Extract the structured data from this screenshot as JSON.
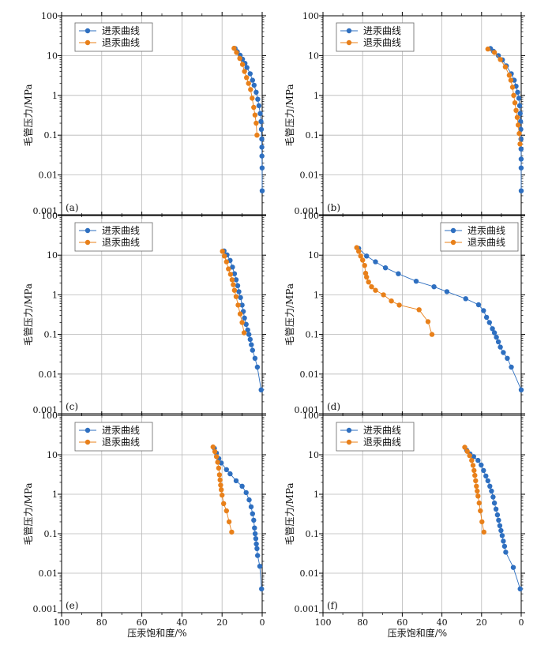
{
  "colors": {
    "intrusion": "#2e6fc0",
    "withdrawal": "#e8801a",
    "grid": "#b8b8b8",
    "axis": "#000000"
  },
  "chart_data": [
    {
      "type": "scatter",
      "panel_label": "(a)",
      "xlim": [
        100,
        0
      ],
      "ylim": [
        0.001,
        100
      ],
      "yscale": "log",
      "ylabel": "毛管压力/MPa",
      "xlabel": "",
      "x_tick_labels": [],
      "y_tick_labels": [
        "100",
        "10",
        "1",
        "0.1",
        "0.01",
        "0.001"
      ],
      "grid": true,
      "legend_placement": "top-left",
      "series": [
        {
          "name": "进汞曲线",
          "points": [
            [
              13.5,
              15.1
            ],
            [
              12.4,
              12.5
            ],
            [
              11.0,
              10.2
            ],
            [
              9.8,
              8.1
            ],
            [
              8.6,
              6.4
            ],
            [
              7.6,
              5.0
            ],
            [
              6.0,
              3.5
            ],
            [
              4.8,
              2.4
            ],
            [
              4.0,
              1.8
            ],
            [
              3.0,
              1.2
            ],
            [
              2.2,
              0.8
            ],
            [
              1.6,
              0.55
            ],
            [
              1.0,
              0.35
            ],
            [
              0.6,
              0.22
            ],
            [
              0.4,
              0.14
            ],
            [
              0.2,
              0.08
            ],
            [
              0.15,
              0.05
            ],
            [
              0.1,
              0.03
            ],
            [
              0.05,
              0.015
            ],
            [
              0.0,
              0.004
            ]
          ]
        },
        {
          "name": "退汞曲线",
          "points": [
            [
              14.0,
              15.3
            ],
            [
              12.8,
              12.0
            ],
            [
              11.2,
              8.5
            ],
            [
              9.8,
              6.0
            ],
            [
              8.8,
              4.0
            ],
            [
              7.8,
              2.8
            ],
            [
              6.8,
              2.0
            ],
            [
              5.8,
              1.4
            ],
            [
              5.0,
              0.85
            ],
            [
              4.2,
              0.5
            ],
            [
              3.6,
              0.32
            ],
            [
              3.0,
              0.2
            ],
            [
              2.6,
              0.1
            ]
          ]
        }
      ]
    },
    {
      "type": "scatter",
      "panel_label": "(b)",
      "xlim": [
        100,
        0
      ],
      "ylim": [
        0.001,
        100
      ],
      "yscale": "log",
      "ylabel": "毛管压力/MPa",
      "xlabel": "",
      "x_tick_labels": [],
      "y_tick_labels": [
        "100",
        "10",
        "1",
        "0.1",
        "0.01",
        "0.001"
      ],
      "grid": true,
      "legend_placement": "top-left",
      "series": [
        {
          "name": "进汞曲线",
          "points": [
            [
              15.5,
              15.0
            ],
            [
              14.0,
              12.8
            ],
            [
              11.5,
              10.0
            ],
            [
              9.5,
              7.8
            ],
            [
              7.5,
              5.5
            ],
            [
              5.0,
              3.5
            ],
            [
              3.5,
              2.4
            ],
            [
              2.6,
              1.7
            ],
            [
              1.8,
              1.2
            ],
            [
              1.2,
              0.85
            ],
            [
              0.8,
              0.55
            ],
            [
              0.5,
              0.35
            ],
            [
              0.3,
              0.22
            ],
            [
              0.2,
              0.14
            ],
            [
              0.12,
              0.08
            ],
            [
              0.08,
              0.045
            ],
            [
              0.05,
              0.025
            ],
            [
              0.03,
              0.015
            ],
            [
              0.0,
              0.004
            ]
          ]
        },
        {
          "name": "退汞曲线",
          "points": [
            [
              16.8,
              14.6
            ],
            [
              13.5,
              12.0
            ],
            [
              10.5,
              8.0
            ],
            [
              8.0,
              5.2
            ],
            [
              6.0,
              3.2
            ],
            [
              5.2,
              2.4
            ],
            [
              4.4,
              1.6
            ],
            [
              3.8,
              1.0
            ],
            [
              3.2,
              0.65
            ],
            [
              2.6,
              0.42
            ],
            [
              2.0,
              0.28
            ],
            [
              1.5,
              0.18
            ],
            [
              1.0,
              0.11
            ],
            [
              0.6,
              0.06
            ]
          ]
        }
      ]
    },
    {
      "type": "scatter",
      "panel_label": "(c)",
      "xlim": [
        100,
        0
      ],
      "ylim": [
        0.001,
        100
      ],
      "yscale": "log",
      "ylabel": "毛管压力/MPa",
      "xlabel": "",
      "x_tick_labels": [],
      "y_tick_labels": [
        "100",
        "10",
        "1",
        "0.1",
        "0.01",
        "0.001"
      ],
      "grid": true,
      "legend_placement": "top-left",
      "series": [
        {
          "name": "进汞曲线",
          "points": [
            [
              19.0,
              12.8
            ],
            [
              17.5,
              10.2
            ],
            [
              16.0,
              7.4
            ],
            [
              14.8,
              5.0
            ],
            [
              13.8,
              3.4
            ],
            [
              13.0,
              2.4
            ],
            [
              12.2,
              1.7
            ],
            [
              11.6,
              1.2
            ],
            [
              10.8,
              0.85
            ],
            [
              10.0,
              0.55
            ],
            [
              9.4,
              0.38
            ],
            [
              8.8,
              0.26
            ],
            [
              8.0,
              0.18
            ],
            [
              7.2,
              0.13
            ],
            [
              6.6,
              0.1
            ],
            [
              6.0,
              0.075
            ],
            [
              5.4,
              0.055
            ],
            [
              4.8,
              0.04
            ],
            [
              3.6,
              0.025
            ],
            [
              2.4,
              0.015
            ],
            [
              0.5,
              0.004
            ]
          ]
        },
        {
          "name": "退汞曲线",
          "points": [
            [
              19.8,
              12.5
            ],
            [
              18.8,
              9.5
            ],
            [
              17.8,
              6.8
            ],
            [
              16.8,
              4.5
            ],
            [
              15.8,
              3.3
            ],
            [
              15.0,
              2.4
            ],
            [
              14.4,
              1.8
            ],
            [
              13.8,
              1.3
            ],
            [
              13.0,
              0.9
            ],
            [
              12.0,
              0.55
            ],
            [
              11.0,
              0.33
            ],
            [
              10.0,
              0.2
            ],
            [
              9.0,
              0.11
            ]
          ]
        }
      ]
    },
    {
      "type": "scatter",
      "panel_label": "(d)",
      "xlim": [
        100,
        0
      ],
      "ylim": [
        0.001,
        100
      ],
      "yscale": "log",
      "ylabel": "毛管压力/MPa",
      "xlabel": "",
      "x_tick_labels": [],
      "y_tick_labels": [
        "100",
        "10",
        "1",
        "0.1",
        "0.01",
        "0.001"
      ],
      "grid": true,
      "legend_placement": "top-right",
      "series": [
        {
          "name": "进汞曲线",
          "points": [
            [
              82.0,
              14.8
            ],
            [
              78.0,
              9.5
            ],
            [
              73.5,
              6.8
            ],
            [
              68.5,
              4.8
            ],
            [
              62.0,
              3.4
            ],
            [
              53.0,
              2.2
            ],
            [
              44.0,
              1.6
            ],
            [
              37.5,
              1.2
            ],
            [
              28.0,
              0.8
            ],
            [
              21.5,
              0.56
            ],
            [
              19.0,
              0.4
            ],
            [
              17.5,
              0.27
            ],
            [
              16.0,
              0.2
            ],
            [
              14.5,
              0.14
            ],
            [
              13.5,
              0.11
            ],
            [
              12.5,
              0.085
            ],
            [
              11.5,
              0.065
            ],
            [
              10.5,
              0.048
            ],
            [
              9.0,
              0.035
            ],
            [
              7.0,
              0.025
            ],
            [
              5.0,
              0.015
            ],
            [
              0.0,
              0.004
            ]
          ]
        },
        {
          "name": "退汞曲线",
          "points": [
            [
              83.0,
              15.5
            ],
            [
              82.0,
              12.5
            ],
            [
              81.0,
              9.5
            ],
            [
              80.0,
              7.5
            ],
            [
              79.0,
              5.5
            ],
            [
              78.5,
              3.5
            ],
            [
              78.0,
              2.8
            ],
            [
              77.0,
              2.1
            ],
            [
              75.5,
              1.6
            ],
            [
              73.5,
              1.3
            ],
            [
              69.5,
              1.0
            ],
            [
              65.5,
              0.7
            ],
            [
              61.5,
              0.55
            ],
            [
              51.5,
              0.42
            ],
            [
              47.0,
              0.21
            ],
            [
              45.0,
              0.1
            ]
          ]
        }
      ]
    },
    {
      "type": "scatter",
      "panel_label": "(e)",
      "xlim": [
        100,
        0
      ],
      "ylim": [
        0.001,
        100
      ],
      "yscale": "log",
      "ylabel": "毛管压力/MPa",
      "xlabel": "压汞饱和度/%",
      "x_tick_labels": [
        "100",
        "80",
        "60",
        "40",
        "20",
        "0"
      ],
      "y_tick_labels": [
        "100",
        "10",
        "1",
        "0.1",
        "0.01",
        "0.001"
      ],
      "grid": true,
      "legend_placement": "top-left",
      "series": [
        {
          "name": "进汞曲线",
          "points": [
            [
              23.8,
              14.5
            ],
            [
              22.8,
              11.0
            ],
            [
              21.6,
              8.0
            ],
            [
              20.4,
              6.2
            ],
            [
              17.8,
              4.2
            ],
            [
              16.0,
              3.3
            ],
            [
              13.0,
              2.2
            ],
            [
              10.0,
              1.6
            ],
            [
              8.0,
              1.1
            ],
            [
              6.5,
              0.72
            ],
            [
              5.5,
              0.48
            ],
            [
              4.8,
              0.32
            ],
            [
              4.2,
              0.22
            ],
            [
              3.8,
              0.14
            ],
            [
              3.5,
              0.1
            ],
            [
              3.2,
              0.075
            ],
            [
              2.9,
              0.055
            ],
            [
              2.6,
              0.042
            ],
            [
              2.3,
              0.028
            ],
            [
              1.2,
              0.015
            ],
            [
              0.3,
              0.004
            ]
          ]
        },
        {
          "name": "退汞曲线",
          "points": [
            [
              24.5,
              15.8
            ],
            [
              23.6,
              12.0
            ],
            [
              22.8,
              9.0
            ],
            [
              22.2,
              6.5
            ],
            [
              21.7,
              4.6
            ],
            [
              21.3,
              3.1
            ],
            [
              21.0,
              2.3
            ],
            [
              20.7,
              1.7
            ],
            [
              20.4,
              1.3
            ],
            [
              20.0,
              0.95
            ],
            [
              19.2,
              0.58
            ],
            [
              17.8,
              0.38
            ],
            [
              16.5,
              0.2
            ],
            [
              15.2,
              0.11
            ]
          ]
        }
      ]
    },
    {
      "type": "scatter",
      "panel_label": "(f)",
      "xlim": [
        100,
        0
      ],
      "ylim": [
        0.001,
        100
      ],
      "yscale": "log",
      "ylabel": "毛管压力/MPa",
      "xlabel": "压汞饱和度/%",
      "x_tick_labels": [
        "100",
        "80",
        "60",
        "40",
        "20",
        "0"
      ],
      "y_tick_labels": [
        "100",
        "10",
        "1",
        "0.1",
        "0.01",
        "0.001"
      ],
      "grid": true,
      "legend_placement": "top-left",
      "series": [
        {
          "name": "进汞曲线",
          "points": [
            [
              27.5,
              13.0
            ],
            [
              25.8,
              10.5
            ],
            [
              24.0,
              9.0
            ],
            [
              21.8,
              7.2
            ],
            [
              20.2,
              5.5
            ],
            [
              19.0,
              4.0
            ],
            [
              17.8,
              2.9
            ],
            [
              16.8,
              2.2
            ],
            [
              15.8,
              1.6
            ],
            [
              15.0,
              1.2
            ],
            [
              14.2,
              0.85
            ],
            [
              13.5,
              0.6
            ],
            [
              12.7,
              0.42
            ],
            [
              12.0,
              0.3
            ],
            [
              11.4,
              0.22
            ],
            [
              10.8,
              0.16
            ],
            [
              10.2,
              0.12
            ],
            [
              9.6,
              0.09
            ],
            [
              9.0,
              0.065
            ],
            [
              8.4,
              0.048
            ],
            [
              7.8,
              0.034
            ],
            [
              4.0,
              0.014
            ],
            [
              0.5,
              0.004
            ]
          ]
        },
        {
          "name": "退汞曲线",
          "points": [
            [
              28.5,
              15.5
            ],
            [
              27.2,
              12.2
            ],
            [
              26.0,
              9.5
            ],
            [
              25.0,
              7.2
            ],
            [
              24.3,
              5.4
            ],
            [
              23.8,
              4.0
            ],
            [
              23.4,
              3.0
            ],
            [
              23.0,
              2.2
            ],
            [
              22.6,
              1.6
            ],
            [
              22.2,
              1.2
            ],
            [
              21.8,
              0.9
            ],
            [
              21.2,
              0.6
            ],
            [
              20.6,
              0.38
            ],
            [
              19.8,
              0.2
            ],
            [
              18.8,
              0.11
            ]
          ]
        }
      ]
    }
  ]
}
